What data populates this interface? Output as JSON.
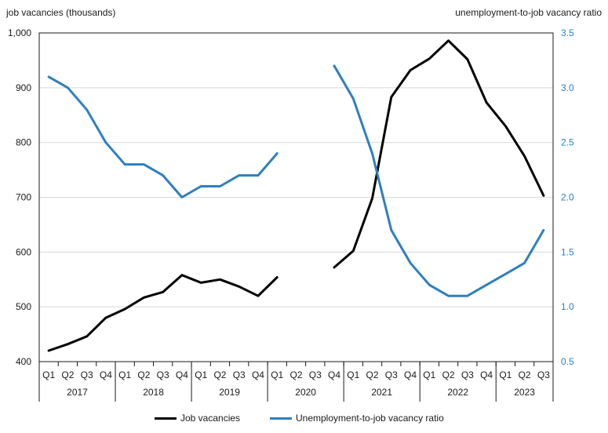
{
  "chart_data": {
    "type": "line",
    "left_axis_label": "job vacancies (thousands)",
    "right_axis_label": "unemployment-to-job vacancy ratio",
    "ylim_left": [
      400,
      1000
    ],
    "yticks_left": [
      "400",
      "500",
      "600",
      "700",
      "800",
      "900",
      "1,000"
    ],
    "ylim_right": [
      0.5,
      3.5
    ],
    "yticks_right": [
      "0.5",
      "1.0",
      "1.5",
      "2.0",
      "2.5",
      "3.0",
      "3.5"
    ],
    "quarters": [
      "Q1",
      "Q2",
      "Q3",
      "Q4",
      "Q1",
      "Q2",
      "Q3",
      "Q4",
      "Q1",
      "Q2",
      "Q3",
      "Q4",
      "Q1",
      "Q2",
      "Q3",
      "Q4",
      "Q1",
      "Q2",
      "Q3",
      "Q4",
      "Q1",
      "Q2",
      "Q3",
      "Q4",
      "Q1",
      "Q2",
      "Q3"
    ],
    "years": [
      "2017",
      "2018",
      "2019",
      "2020",
      "2021",
      "2022",
      "2023"
    ],
    "grid": true,
    "legend_position": "bottom",
    "series": [
      {
        "name": "Job vacancies",
        "axis": "left",
        "color": "#000000",
        "values": [
          420,
          432,
          446,
          480,
          496,
          517,
          527,
          558,
          544,
          550,
          537,
          520,
          554,
          null,
          null,
          572,
          602,
          698,
          883,
          932,
          953,
          986,
          952,
          873,
          830,
          775,
          703
        ]
      },
      {
        "name": "Unemployment-to-job vacancy ratio",
        "axis": "right",
        "color": "#2e7fbf",
        "values": [
          3.1,
          3.0,
          2.8,
          2.5,
          2.3,
          2.3,
          2.2,
          2.0,
          2.1,
          2.1,
          2.2,
          2.2,
          2.4,
          null,
          null,
          3.2,
          2.9,
          2.4,
          1.7,
          1.4,
          1.2,
          1.1,
          1.1,
          1.2,
          1.3,
          1.4,
          1.7
        ]
      }
    ]
  }
}
